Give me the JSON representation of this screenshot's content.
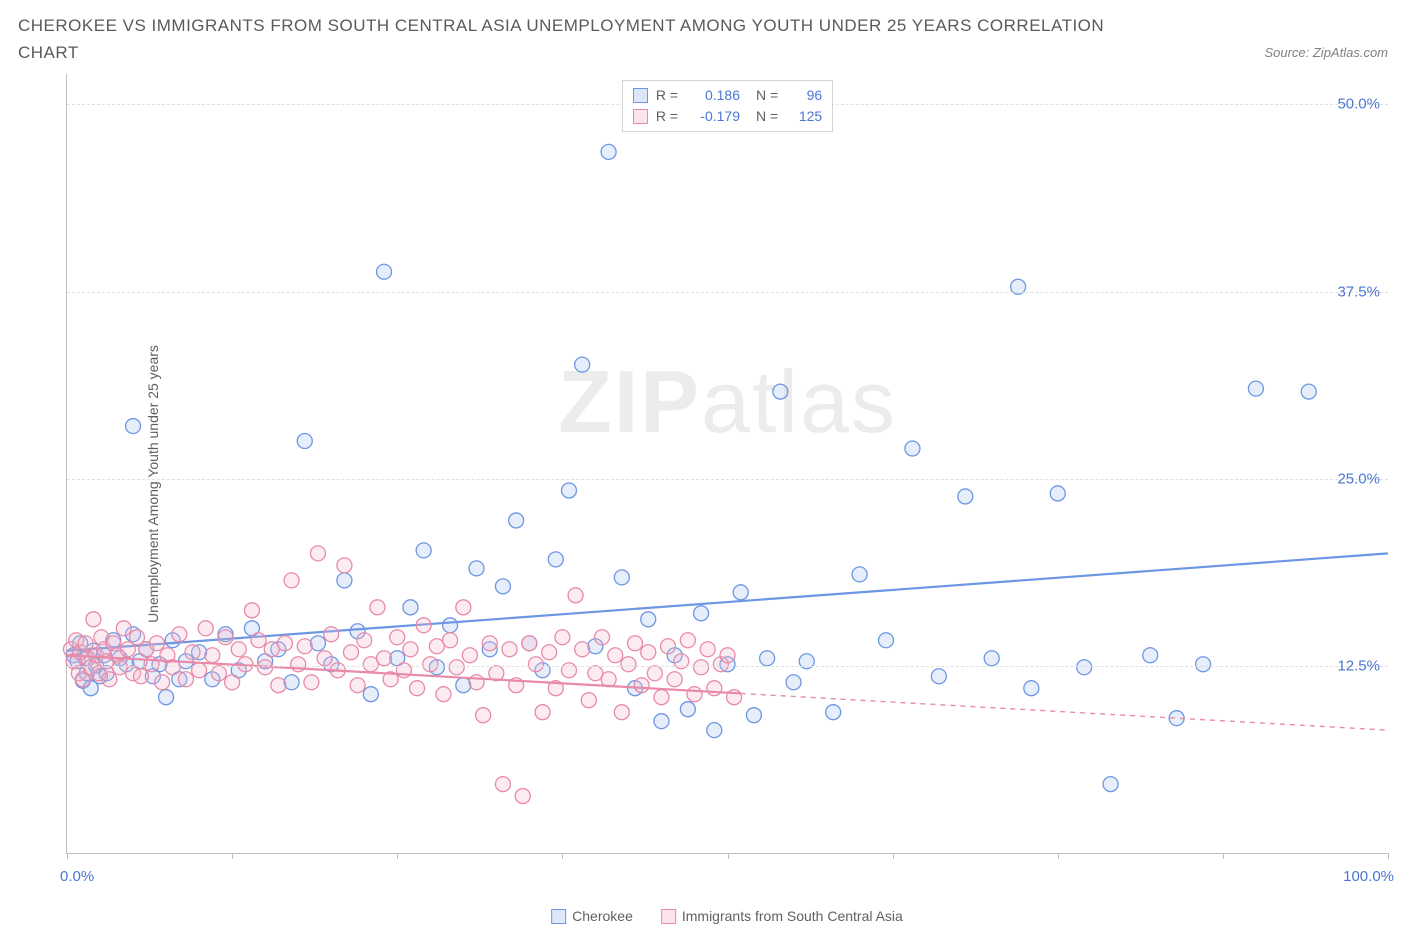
{
  "title": "CHEROKEE VS IMMIGRANTS FROM SOUTH CENTRAL ASIA UNEMPLOYMENT AMONG YOUTH UNDER 25 YEARS CORRELATION CHART",
  "source": "Source: ZipAtlas.com",
  "ylabel": "Unemployment Among Youth under 25 years",
  "watermark_bold": "ZIP",
  "watermark_rest": "atlas",
  "chart": {
    "type": "scatter",
    "xlim": [
      0,
      100
    ],
    "ylim": [
      0,
      52
    ],
    "x_ticks": [
      0,
      12.5,
      25,
      37.5,
      50,
      62.5,
      75,
      87.5,
      100
    ],
    "x_tick_labels_shown": {
      "0": "0.0%",
      "100": "100.0%"
    },
    "y_ticks": [
      12.5,
      25,
      37.5,
      50
    ],
    "y_tick_labels": [
      "12.5%",
      "25.0%",
      "37.5%",
      "50.0%"
    ],
    "grid_color": "#e0e0e0",
    "axis_color": "#bfbfbf",
    "background_color": "#ffffff",
    "tick_label_color": "#4a76d4",
    "label_fontsize": 14,
    "tick_fontsize": 15,
    "marker_radius": 7.5,
    "marker_fill_opacity": 0.28,
    "marker_stroke_width": 1.3,
    "series": [
      {
        "name": "Cherokee",
        "color": "#6d96e3",
        "fill": "#a9c2ef",
        "R": "0.186",
        "N": "96",
        "trend": {
          "x1": 0,
          "y1": 13.5,
          "x2": 100,
          "y2": 20.0,
          "dashed_from_x": null
        },
        "points": [
          [
            0.5,
            13.2
          ],
          [
            0.8,
            12.8
          ],
          [
            1.0,
            14.0
          ],
          [
            1.2,
            11.5
          ],
          [
            1.4,
            13.0
          ],
          [
            1.5,
            12.0
          ],
          [
            1.8,
            11.0
          ],
          [
            2.0,
            13.5
          ],
          [
            2.2,
            12.5
          ],
          [
            2.5,
            11.8
          ],
          [
            2.8,
            13.2
          ],
          [
            3.0,
            12.0
          ],
          [
            3.5,
            14.2
          ],
          [
            4.0,
            13.0
          ],
          [
            4.5,
            12.6
          ],
          [
            5.0,
            14.6
          ],
          [
            5.5,
            12.8
          ],
          [
            6.0,
            13.6
          ],
          [
            6.5,
            11.8
          ],
          [
            7.0,
            12.6
          ],
          [
            7.5,
            10.4
          ],
          [
            8.0,
            14.2
          ],
          [
            8.5,
            11.6
          ],
          [
            9.0,
            12.8
          ],
          [
            10.0,
            13.4
          ],
          [
            11.0,
            11.6
          ],
          [
            12.0,
            14.6
          ],
          [
            13.0,
            12.2
          ],
          [
            14.0,
            15.0
          ],
          [
            15.0,
            12.8
          ],
          [
            16.0,
            13.6
          ],
          [
            17.0,
            11.4
          ],
          [
            18.0,
            27.5
          ],
          [
            19.0,
            14.0
          ],
          [
            20.0,
            12.6
          ],
          [
            21.0,
            18.2
          ],
          [
            22.0,
            14.8
          ],
          [
            23.0,
            10.6
          ],
          [
            24.0,
            38.8
          ],
          [
            25.0,
            13.0
          ],
          [
            26.0,
            16.4
          ],
          [
            27.0,
            20.2
          ],
          [
            28.0,
            12.4
          ],
          [
            29.0,
            15.2
          ],
          [
            30.0,
            11.2
          ],
          [
            31.0,
            19.0
          ],
          [
            32.0,
            13.6
          ],
          [
            33.0,
            17.8
          ],
          [
            34.0,
            22.2
          ],
          [
            35.0,
            14.0
          ],
          [
            36.0,
            12.2
          ],
          [
            37.0,
            19.6
          ],
          [
            38.0,
            24.2
          ],
          [
            39.0,
            32.6
          ],
          [
            40.0,
            13.8
          ],
          [
            41.0,
            46.8
          ],
          [
            42.0,
            18.4
          ],
          [
            43.0,
            11.0
          ],
          [
            44.0,
            15.6
          ],
          [
            45.0,
            8.8
          ],
          [
            46.0,
            13.2
          ],
          [
            47.0,
            9.6
          ],
          [
            48.0,
            16.0
          ],
          [
            49.0,
            8.2
          ],
          [
            50.0,
            12.6
          ],
          [
            51.0,
            17.4
          ],
          [
            52.0,
            9.2
          ],
          [
            53.0,
            13.0
          ],
          [
            54.0,
            30.8
          ],
          [
            55.0,
            11.4
          ],
          [
            56.0,
            12.8
          ],
          [
            58.0,
            9.4
          ],
          [
            60.0,
            18.6
          ],
          [
            62.0,
            14.2
          ],
          [
            64.0,
            27.0
          ],
          [
            66.0,
            11.8
          ],
          [
            68.0,
            23.8
          ],
          [
            70.0,
            13.0
          ],
          [
            72.0,
            37.8
          ],
          [
            73.0,
            11.0
          ],
          [
            75.0,
            24.0
          ],
          [
            77.0,
            12.4
          ],
          [
            79.0,
            4.6
          ],
          [
            82.0,
            13.2
          ],
          [
            84.0,
            9.0
          ],
          [
            86.0,
            12.6
          ],
          [
            90.0,
            31.0
          ],
          [
            94.0,
            30.8
          ],
          [
            5.0,
            28.5
          ]
        ]
      },
      {
        "name": "Immigrants from South Central Asia",
        "color": "#e88aa8",
        "fill": "#f4bccd",
        "R": "-0.179",
        "N": "125",
        "trend": {
          "x1": 0,
          "y1": 13.2,
          "x2": 100,
          "y2": 8.2,
          "dashed_from_x": 51
        },
        "points": [
          [
            0.3,
            13.6
          ],
          [
            0.5,
            12.8
          ],
          [
            0.7,
            14.2
          ],
          [
            0.9,
            12.0
          ],
          [
            1.0,
            13.4
          ],
          [
            1.2,
            11.6
          ],
          [
            1.4,
            14.0
          ],
          [
            1.6,
            13.0
          ],
          [
            1.8,
            12.4
          ],
          [
            2.0,
            15.6
          ],
          [
            2.2,
            13.2
          ],
          [
            2.4,
            12.0
          ],
          [
            2.6,
            14.4
          ],
          [
            2.8,
            13.6
          ],
          [
            3.0,
            12.8
          ],
          [
            3.2,
            11.6
          ],
          [
            3.5,
            14.0
          ],
          [
            3.8,
            13.2
          ],
          [
            4.0,
            12.4
          ],
          [
            4.3,
            15.0
          ],
          [
            4.6,
            13.6
          ],
          [
            5.0,
            12.0
          ],
          [
            5.3,
            14.4
          ],
          [
            5.6,
            11.8
          ],
          [
            6.0,
            13.6
          ],
          [
            6.4,
            12.6
          ],
          [
            6.8,
            14.0
          ],
          [
            7.2,
            11.4
          ],
          [
            7.6,
            13.2
          ],
          [
            8.0,
            12.4
          ],
          [
            8.5,
            14.6
          ],
          [
            9.0,
            11.6
          ],
          [
            9.5,
            13.4
          ],
          [
            10.0,
            12.2
          ],
          [
            10.5,
            15.0
          ],
          [
            11.0,
            13.2
          ],
          [
            11.5,
            12.0
          ],
          [
            12.0,
            14.4
          ],
          [
            12.5,
            11.4
          ],
          [
            13.0,
            13.6
          ],
          [
            13.5,
            12.6
          ],
          [
            14.0,
            16.2
          ],
          [
            14.5,
            14.2
          ],
          [
            15.0,
            12.4
          ],
          [
            15.5,
            13.6
          ],
          [
            16.0,
            11.2
          ],
          [
            16.5,
            14.0
          ],
          [
            17.0,
            18.2
          ],
          [
            17.5,
            12.6
          ],
          [
            18.0,
            13.8
          ],
          [
            18.5,
            11.4
          ],
          [
            19.0,
            20.0
          ],
          [
            19.5,
            13.0
          ],
          [
            20.0,
            14.6
          ],
          [
            20.5,
            12.2
          ],
          [
            21.0,
            19.2
          ],
          [
            21.5,
            13.4
          ],
          [
            22.0,
            11.2
          ],
          [
            22.5,
            14.2
          ],
          [
            23.0,
            12.6
          ],
          [
            23.5,
            16.4
          ],
          [
            24.0,
            13.0
          ],
          [
            24.5,
            11.6
          ],
          [
            25.0,
            14.4
          ],
          [
            25.5,
            12.2
          ],
          [
            26.0,
            13.6
          ],
          [
            26.5,
            11.0
          ],
          [
            27.0,
            15.2
          ],
          [
            27.5,
            12.6
          ],
          [
            28.0,
            13.8
          ],
          [
            28.5,
            10.6
          ],
          [
            29.0,
            14.2
          ],
          [
            29.5,
            12.4
          ],
          [
            30.0,
            16.4
          ],
          [
            30.5,
            13.2
          ],
          [
            31.0,
            11.4
          ],
          [
            31.5,
            9.2
          ],
          [
            32.0,
            14.0
          ],
          [
            32.5,
            12.0
          ],
          [
            33.0,
            4.6
          ],
          [
            33.5,
            13.6
          ],
          [
            34.0,
            11.2
          ],
          [
            34.5,
            3.8
          ],
          [
            35.0,
            14.0
          ],
          [
            35.5,
            12.6
          ],
          [
            36.0,
            9.4
          ],
          [
            36.5,
            13.4
          ],
          [
            37.0,
            11.0
          ],
          [
            37.5,
            14.4
          ],
          [
            38.0,
            12.2
          ],
          [
            38.5,
            17.2
          ],
          [
            39.0,
            13.6
          ],
          [
            39.5,
            10.2
          ],
          [
            40.0,
            12.0
          ],
          [
            40.5,
            14.4
          ],
          [
            41.0,
            11.6
          ],
          [
            41.5,
            13.2
          ],
          [
            42.0,
            9.4
          ],
          [
            42.5,
            12.6
          ],
          [
            43.0,
            14.0
          ],
          [
            43.5,
            11.2
          ],
          [
            44.0,
            13.4
          ],
          [
            44.5,
            12.0
          ],
          [
            45.0,
            10.4
          ],
          [
            45.5,
            13.8
          ],
          [
            46.0,
            11.6
          ],
          [
            46.5,
            12.8
          ],
          [
            47.0,
            14.2
          ],
          [
            47.5,
            10.6
          ],
          [
            48.0,
            12.4
          ],
          [
            48.5,
            13.6
          ],
          [
            49.0,
            11.0
          ],
          [
            49.5,
            12.6
          ],
          [
            50.0,
            13.2
          ],
          [
            50.5,
            10.4
          ]
        ]
      }
    ],
    "legend_bottom": [
      {
        "label": "Cherokee",
        "stroke": "#6d96e3",
        "fill": "#a9c2ef"
      },
      {
        "label": "Immigrants from South Central Asia",
        "stroke": "#e88aa8",
        "fill": "#f4bccd"
      }
    ]
  }
}
